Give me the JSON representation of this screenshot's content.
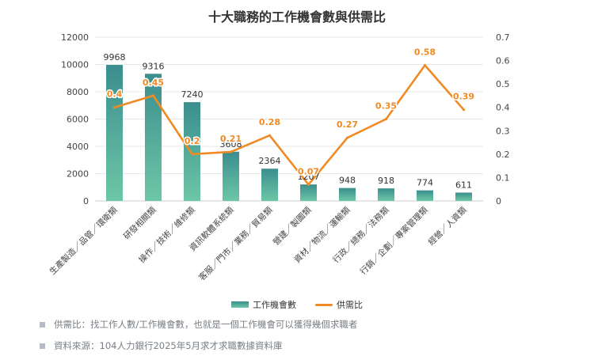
{
  "chart_data": {
    "type": "bar",
    "title": "十大職務的工作機會數與供需比",
    "categories": [
      "生產製造／品管／環衛類",
      "研發相關類",
      "操作／技術／維修類",
      "資訊軟體系統類",
      "客服／門市／業務／貿易類",
      "營建／製圖類",
      "資材／物流／運輸類",
      "行政／總務／法務類",
      "行銷／企劃／專案管理類",
      "經營／人資類"
    ],
    "series": [
      {
        "name": "工作機會數",
        "type": "bar",
        "axis": "left",
        "color_top": "#3a8e8e",
        "color_bottom": "#6cc7a6",
        "values": [
          9968,
          9316,
          7240,
          3608,
          2364,
          1207,
          948,
          918,
          774,
          611
        ]
      },
      {
        "name": "供需比",
        "type": "line",
        "axis": "right",
        "color": "#f08a24",
        "values": [
          0.4,
          0.45,
          0.2,
          0.21,
          0.28,
          0.07,
          0.27,
          0.35,
          0.58,
          0.39
        ]
      }
    ],
    "y_left": {
      "ylim": [
        0,
        12000
      ],
      "ticks": [
        0,
        2000,
        4000,
        6000,
        8000,
        10000,
        12000
      ]
    },
    "y_right": {
      "ylim": [
        0,
        0.7
      ],
      "ticks": [
        0,
        0.1,
        0.2,
        0.3,
        0.4,
        0.5,
        0.6,
        0.7
      ]
    },
    "grid": true,
    "legend": "bottom"
  },
  "notes": [
    "供需比：找工作人數/工作機會數，也就是一個工作機會可以獲得幾個求職者",
    "資料來源：104人力銀行2025年5月求才求職數據資料庫"
  ]
}
